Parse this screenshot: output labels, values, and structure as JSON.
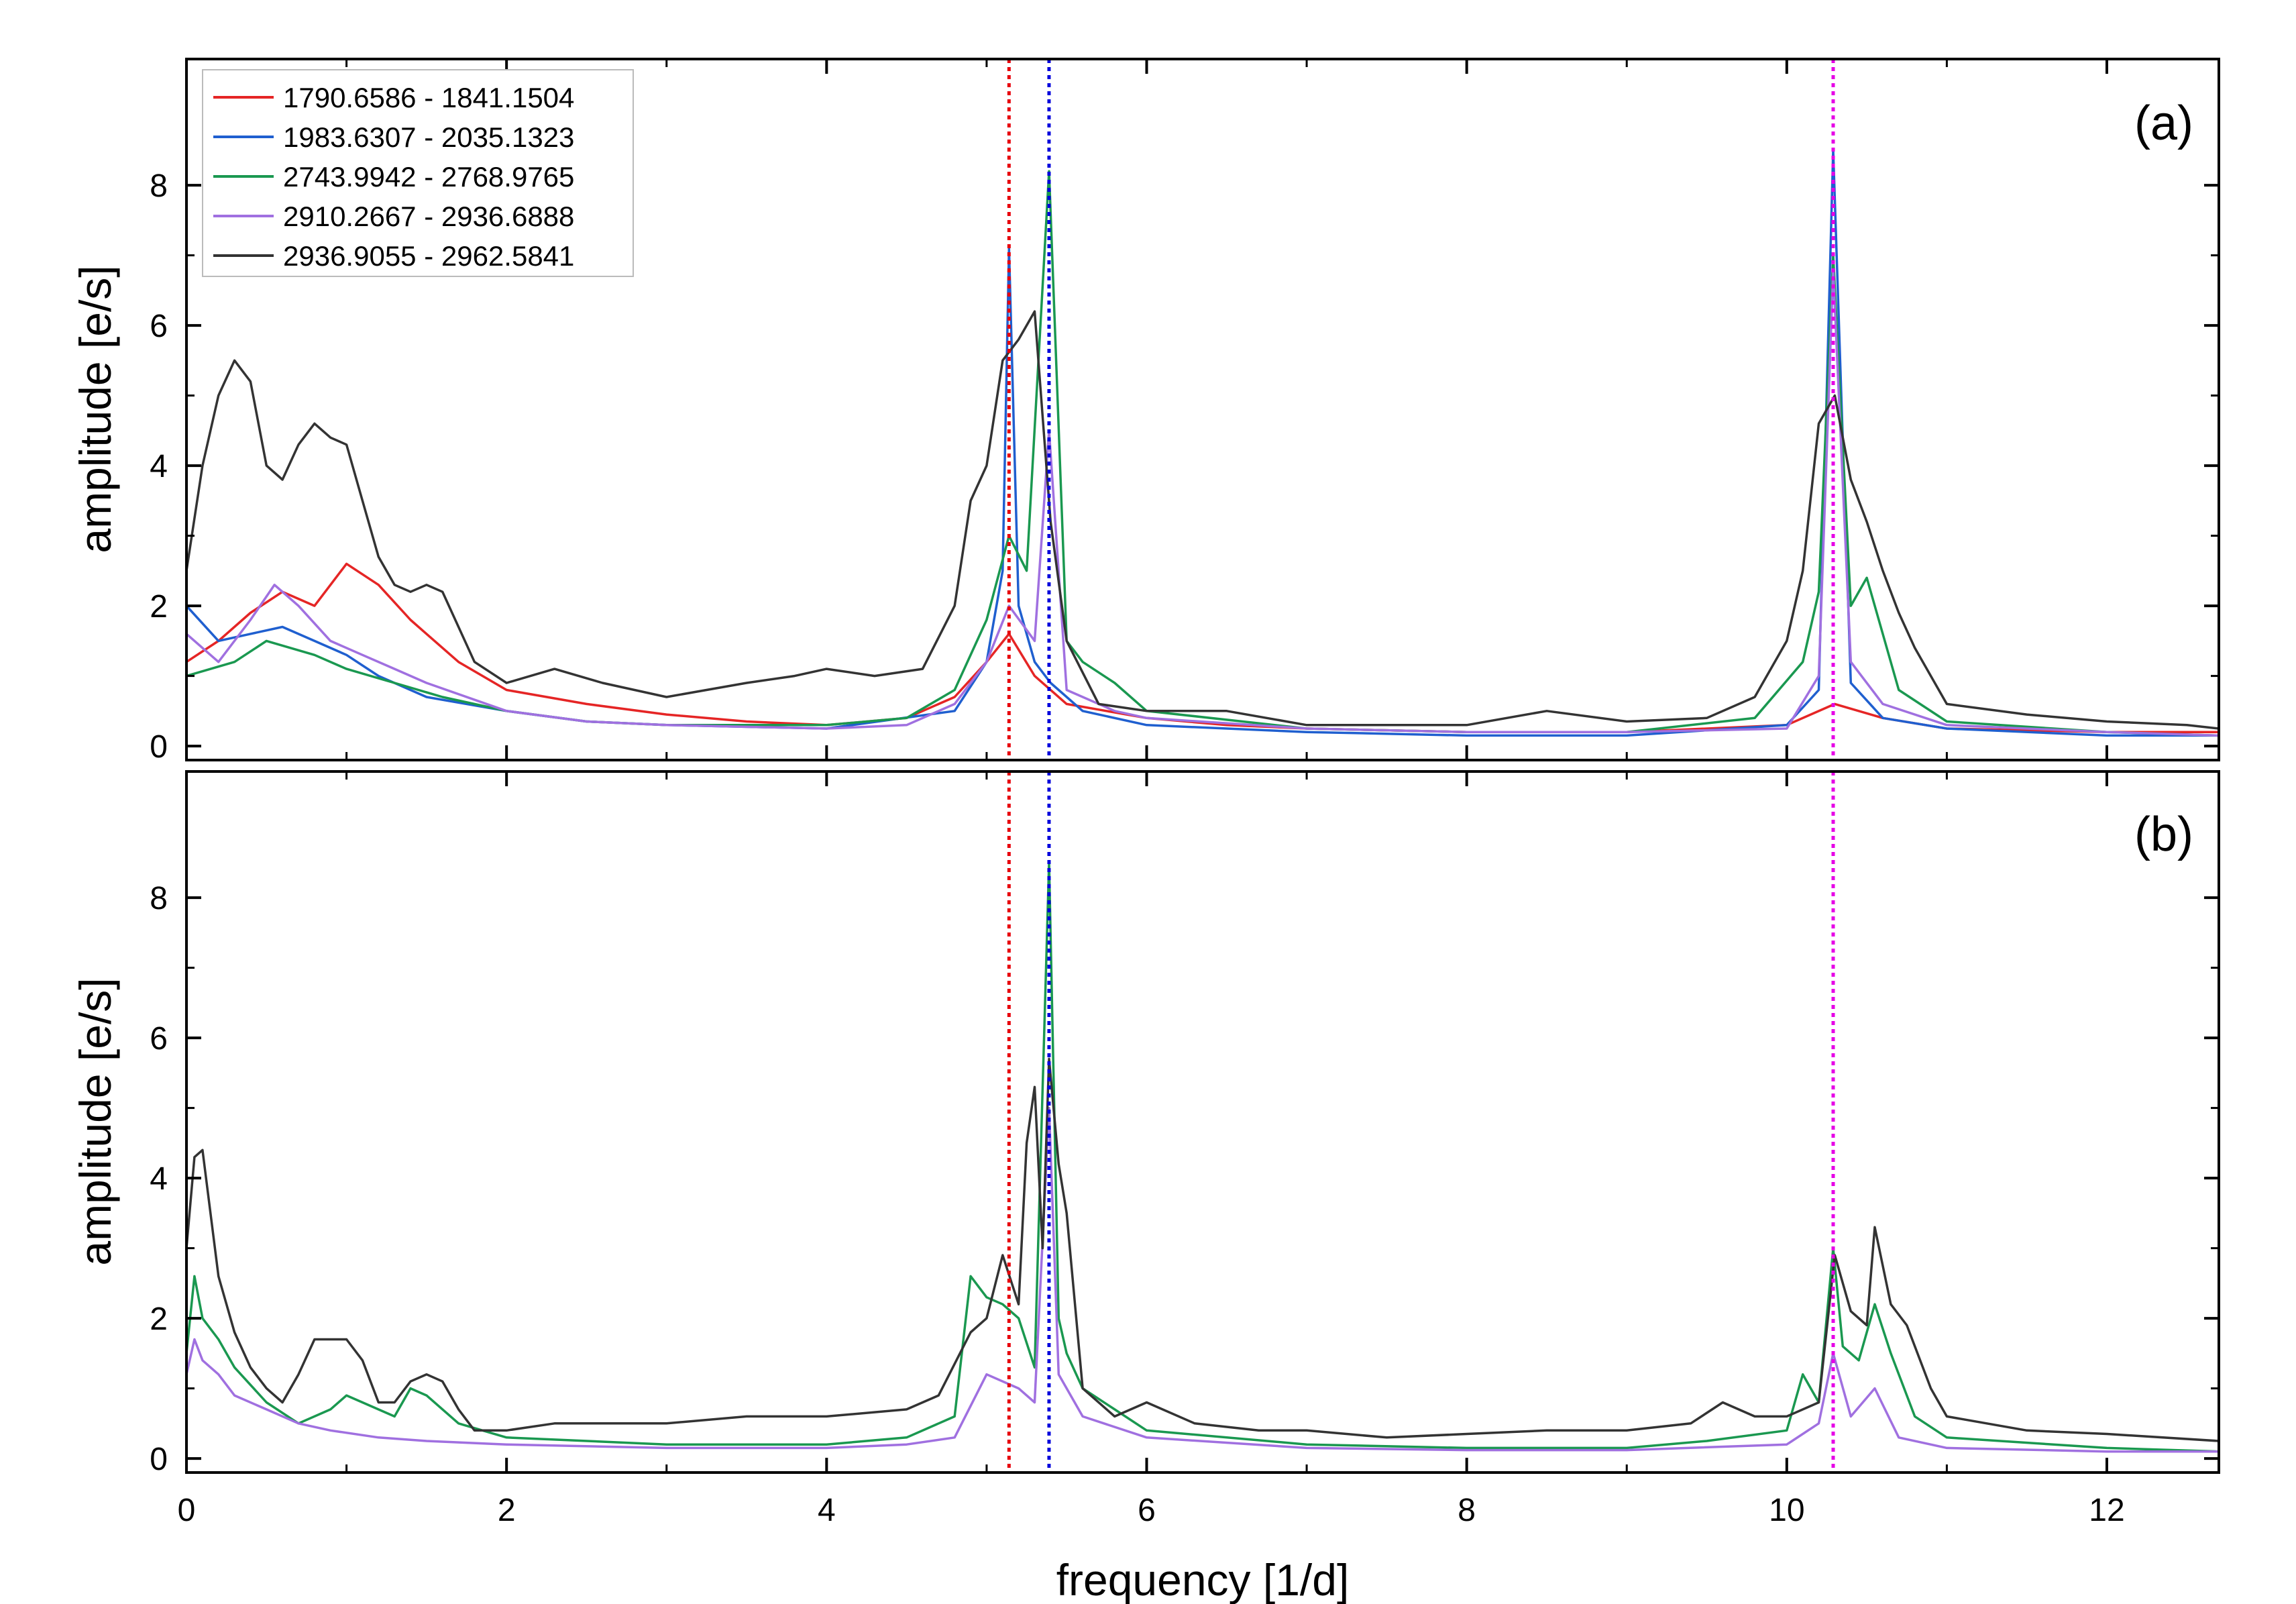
{
  "chart_data": {
    "type": "line",
    "xlabel": "frequency [1/d]",
    "ylabel": "amplitude [e/s]",
    "xlim": [
      0,
      12.7
    ],
    "ylim": [
      -0.2,
      9.8
    ],
    "x_ticks": [
      0,
      2,
      4,
      6,
      8,
      10,
      12
    ],
    "x_tick_labels": [
      "0",
      "2",
      "4",
      "6",
      "8",
      "10",
      "12"
    ],
    "y_ticks": [
      0,
      2,
      4,
      6,
      8
    ],
    "y_tick_labels": [
      "0",
      "2",
      "4",
      "6",
      "8"
    ],
    "legend_position": "top-left of panel (a)",
    "reference_lines": [
      {
        "x": 5.14,
        "color": "#e8000b",
        "style": "dotted"
      },
      {
        "x": 5.39,
        "color": "#0000dd",
        "style": "dotted"
      },
      {
        "x": 10.29,
        "color": "#e600e6",
        "style": "dotted"
      }
    ],
    "series": [
      {
        "name": "1790.6586 - 1841.1504",
        "color": "#e52525"
      },
      {
        "name": "1983.6307 - 2035.1323",
        "color": "#1f5fcf"
      },
      {
        "name": "2743.9942 - 2768.9765",
        "color": "#1a9850"
      },
      {
        "name": "2910.2667 - 2936.6888",
        "color": "#a070e0"
      },
      {
        "name": "2936.9055 - 2962.5841",
        "color": "#333333"
      }
    ],
    "panels": [
      {
        "label": "(a)",
        "series": {
          "1790.6586 - 1841.1504": {
            "x": [
              0,
              0.2,
              0.4,
              0.6,
              0.8,
              1.0,
              1.2,
              1.4,
              1.7,
              2.0,
              2.5,
              3.0,
              3.5,
              4.0,
              4.5,
              4.8,
              5.0,
              5.14,
              5.3,
              5.5,
              6.0,
              6.5,
              7.0,
              8.0,
              9.0,
              10.0,
              10.3,
              10.6,
              11.0,
              12.0,
              12.7
            ],
            "y": [
              1.2,
              1.5,
              1.9,
              2.2,
              2.0,
              2.6,
              2.3,
              1.8,
              1.2,
              0.8,
              0.6,
              0.45,
              0.35,
              0.3,
              0.4,
              0.7,
              1.2,
              1.6,
              1.0,
              0.6,
              0.4,
              0.3,
              0.25,
              0.2,
              0.2,
              0.3,
              0.6,
              0.4,
              0.25,
              0.2,
              0.2
            ]
          },
          "1983.6307 - 2035.1323": {
            "x": [
              0,
              0.2,
              0.4,
              0.6,
              0.8,
              1.0,
              1.2,
              1.5,
              2.0,
              2.5,
              3.0,
              4.0,
              4.8,
              5.0,
              5.1,
              5.14,
              5.2,
              5.3,
              5.4,
              5.6,
              6.0,
              7.0,
              8.0,
              9.0,
              10.0,
              10.2,
              10.29,
              10.4,
              10.6,
              11.0,
              12.0,
              12.7
            ],
            "y": [
              2.0,
              1.5,
              1.6,
              1.7,
              1.5,
              1.3,
              1.0,
              0.7,
              0.5,
              0.35,
              0.3,
              0.25,
              0.5,
              1.2,
              2.5,
              7.1,
              2.0,
              1.2,
              0.9,
              0.5,
              0.3,
              0.2,
              0.15,
              0.15,
              0.3,
              0.8,
              8.5,
              0.9,
              0.4,
              0.25,
              0.15,
              0.15
            ]
          },
          "2743.9942 - 2768.9765": {
            "x": [
              0,
              0.3,
              0.5,
              0.8,
              1.0,
              1.3,
              1.6,
              2.0,
              2.5,
              3.0,
              4.0,
              4.5,
              4.8,
              5.0,
              5.14,
              5.25,
              5.39,
              5.5,
              5.6,
              5.8,
              6.0,
              7.0,
              8.0,
              9.0,
              9.8,
              10.1,
              10.2,
              10.29,
              10.4,
              10.5,
              10.7,
              11.0,
              12.0,
              12.7
            ],
            "y": [
              1.0,
              1.2,
              1.5,
              1.3,
              1.1,
              0.9,
              0.7,
              0.5,
              0.35,
              0.3,
              0.3,
              0.4,
              0.8,
              1.8,
              3.0,
              2.5,
              8.2,
              1.5,
              1.2,
              0.9,
              0.5,
              0.25,
              0.2,
              0.2,
              0.4,
              1.2,
              2.2,
              7.0,
              2.0,
              2.4,
              0.8,
              0.35,
              0.2,
              0.15
            ]
          },
          "2910.2667 - 2936.6888": {
            "x": [
              0,
              0.2,
              0.4,
              0.55,
              0.7,
              0.9,
              1.1,
              1.3,
              1.5,
              2.0,
              2.5,
              3.0,
              4.0,
              4.5,
              4.8,
              5.0,
              5.14,
              5.3,
              5.39,
              5.5,
              5.8,
              6.0,
              7.0,
              8.0,
              9.0,
              10.0,
              10.2,
              10.29,
              10.4,
              10.6,
              11.0,
              12.0,
              12.7
            ],
            "y": [
              1.6,
              1.2,
              1.8,
              2.3,
              2.0,
              1.5,
              1.3,
              1.1,
              0.9,
              0.5,
              0.35,
              0.3,
              0.25,
              0.3,
              0.6,
              1.2,
              2.0,
              1.5,
              4.5,
              0.8,
              0.5,
              0.4,
              0.25,
              0.2,
              0.2,
              0.25,
              1.0,
              6.8,
              1.2,
              0.6,
              0.3,
              0.2,
              0.15
            ]
          },
          "2936.9055 - 2962.5841": {
            "x": [
              0,
              0.1,
              0.2,
              0.3,
              0.4,
              0.5,
              0.6,
              0.7,
              0.8,
              0.9,
              1.0,
              1.1,
              1.2,
              1.3,
              1.4,
              1.5,
              1.6,
              1.8,
              2.0,
              2.3,
              2.6,
              3.0,
              3.5,
              3.8,
              4.0,
              4.3,
              4.6,
              4.8,
              4.9,
              5.0,
              5.1,
              5.2,
              5.3,
              5.4,
              5.5,
              5.7,
              6.0,
              6.5,
              7.0,
              8.0,
              8.5,
              9.0,
              9.5,
              9.8,
              10.0,
              10.1,
              10.2,
              10.3,
              10.4,
              10.5,
              10.6,
              10.7,
              10.8,
              11.0,
              11.5,
              12.0,
              12.5,
              12.7
            ],
            "y": [
              2.5,
              4.0,
              5.0,
              5.5,
              5.2,
              4.0,
              3.8,
              4.3,
              4.6,
              4.4,
              4.3,
              3.5,
              2.7,
              2.3,
              2.2,
              2.3,
              2.2,
              1.2,
              0.9,
              1.1,
              0.9,
              0.7,
              0.9,
              1.0,
              1.1,
              1.0,
              1.1,
              2.0,
              3.5,
              4.0,
              5.5,
              5.8,
              6.2,
              3.2,
              1.5,
              0.6,
              0.5,
              0.5,
              0.3,
              0.3,
              0.5,
              0.35,
              0.4,
              0.7,
              1.5,
              2.5,
              4.6,
              5.0,
              3.8,
              3.2,
              2.5,
              1.9,
              1.4,
              0.6,
              0.45,
              0.35,
              0.3,
              0.25
            ]
          }
        }
      },
      {
        "label": "(b)",
        "series": {
          "2743.9942 - 2768.9765": {
            "x": [
              0,
              0.05,
              0.1,
              0.2,
              0.3,
              0.5,
              0.7,
              0.9,
              1.0,
              1.1,
              1.3,
              1.4,
              1.5,
              1.7,
              2.0,
              3.0,
              4.0,
              4.5,
              4.8,
              4.9,
              5.0,
              5.1,
              5.2,
              5.3,
              5.39,
              5.45,
              5.5,
              5.6,
              5.8,
              6.0,
              7.0,
              8.0,
              9.0,
              9.5,
              10.0,
              10.1,
              10.2,
              10.29,
              10.35,
              10.45,
              10.55,
              10.65,
              10.8,
              11.0,
              12.0,
              12.7
            ],
            "y": [
              1.5,
              2.6,
              2.0,
              1.7,
              1.3,
              0.8,
              0.5,
              0.7,
              0.9,
              0.8,
              0.6,
              1.0,
              0.9,
              0.5,
              0.3,
              0.2,
              0.2,
              0.3,
              0.6,
              2.6,
              2.3,
              2.2,
              2.0,
              1.3,
              8.5,
              2.0,
              1.5,
              1.0,
              0.7,
              0.4,
              0.2,
              0.15,
              0.15,
              0.25,
              0.4,
              1.2,
              0.8,
              3.0,
              1.6,
              1.4,
              2.2,
              1.5,
              0.6,
              0.3,
              0.15,
              0.1
            ]
          },
          "2910.2667 - 2936.6888": {
            "x": [
              0,
              0.05,
              0.1,
              0.2,
              0.3,
              0.5,
              0.7,
              0.9,
              1.2,
              1.5,
              2.0,
              3.0,
              4.0,
              4.5,
              4.8,
              5.0,
              5.2,
              5.3,
              5.39,
              5.45,
              5.6,
              6.0,
              7.0,
              8.0,
              9.0,
              10.0,
              10.2,
              10.29,
              10.4,
              10.55,
              10.7,
              11.0,
              12.0,
              12.7
            ],
            "y": [
              1.2,
              1.7,
              1.4,
              1.2,
              0.9,
              0.7,
              0.5,
              0.4,
              0.3,
              0.25,
              0.2,
              0.15,
              0.15,
              0.2,
              0.3,
              1.2,
              1.0,
              0.8,
              5.0,
              1.2,
              0.6,
              0.3,
              0.15,
              0.12,
              0.12,
              0.2,
              0.5,
              1.5,
              0.6,
              1.0,
              0.3,
              0.15,
              0.1,
              0.1
            ]
          },
          "2936.9055 - 2962.5841": {
            "x": [
              0,
              0.05,
              0.1,
              0.15,
              0.2,
              0.3,
              0.4,
              0.5,
              0.6,
              0.7,
              0.8,
              0.9,
              1.0,
              1.1,
              1.2,
              1.3,
              1.4,
              1.5,
              1.6,
              1.7,
              1.8,
              2.0,
              2.3,
              2.6,
              3.0,
              3.5,
              4.0,
              4.5,
              4.7,
              4.9,
              5.0,
              5.1,
              5.2,
              5.25,
              5.3,
              5.35,
              5.39,
              5.45,
              5.5,
              5.6,
              5.8,
              6.0,
              6.3,
              6.7,
              7.0,
              7.5,
              8.0,
              8.5,
              9.0,
              9.4,
              9.6,
              9.8,
              10.0,
              10.2,
              10.3,
              10.4,
              10.5,
              10.55,
              10.65,
              10.75,
              10.9,
              11.0,
              11.5,
              12.0,
              12.7
            ],
            "y": [
              3.0,
              4.3,
              4.4,
              3.5,
              2.6,
              1.8,
              1.3,
              1.0,
              0.8,
              1.2,
              1.7,
              1.7,
              1.7,
              1.4,
              0.8,
              0.8,
              1.1,
              1.2,
              1.1,
              0.7,
              0.4,
              0.4,
              0.5,
              0.5,
              0.5,
              0.6,
              0.6,
              0.7,
              0.9,
              1.8,
              2.0,
              2.9,
              2.2,
              4.5,
              5.3,
              3.0,
              5.7,
              4.2,
              3.5,
              1.0,
              0.6,
              0.8,
              0.5,
              0.4,
              0.4,
              0.3,
              0.35,
              0.4,
              0.4,
              0.5,
              0.8,
              0.6,
              0.6,
              0.8,
              2.9,
              2.1,
              1.9,
              3.3,
              2.2,
              1.9,
              1.0,
              0.6,
              0.4,
              0.35,
              0.25
            ]
          }
        }
      }
    ]
  }
}
